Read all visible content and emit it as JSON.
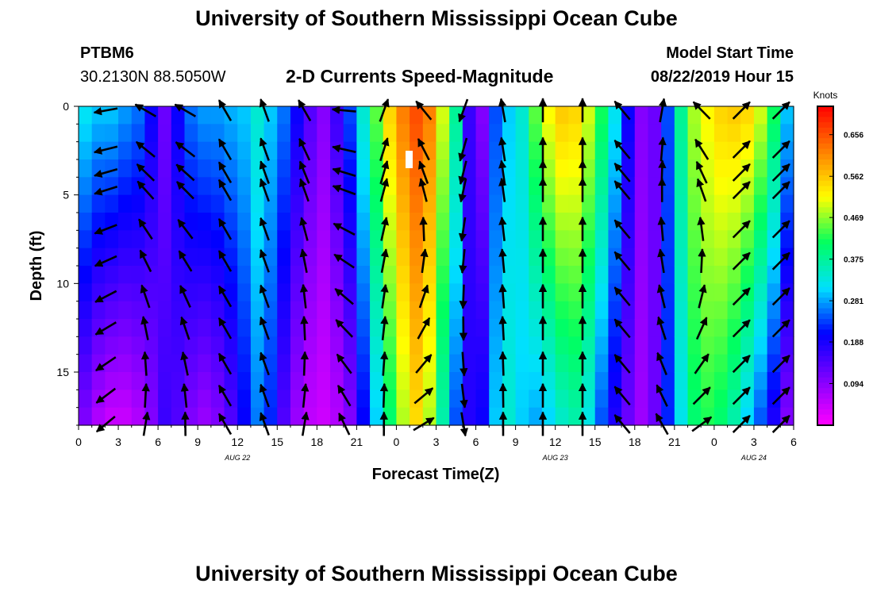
{
  "header": {
    "title": "University of Southern Mississippi Ocean Cube",
    "station_id": "PTBM6",
    "coordinates": "30.2130N 88.5050W",
    "subtitle": "2-D Currents Speed-Magnitude",
    "model_start_label": "Model Start Time",
    "model_start_value": "08/22/2019 Hour 15"
  },
  "footer": {
    "title": "University of Southern Mississippi Ocean Cube"
  },
  "chart_data": {
    "type": "heatmap",
    "title": "2-D Currents Speed-Magnitude",
    "xlabel": "Forecast Time(Z)",
    "ylabel": "Depth (ft)",
    "x_tick_labels": [
      "0",
      "3",
      "6",
      "9",
      "12",
      "15",
      "18",
      "21",
      "0",
      "3",
      "6",
      "9",
      "12",
      "15",
      "18",
      "21",
      "0",
      "3",
      "6"
    ],
    "x_range_hours": [
      0,
      54
    ],
    "date_labels": [
      {
        "text": "AUG  22",
        "hour": 12
      },
      {
        "text": "AUG  23",
        "hour": 36
      },
      {
        "text": "AUG  24",
        "hour": 51
      }
    ],
    "y_ticks": [
      0,
      5,
      10,
      15
    ],
    "y_range_ft": [
      0,
      18
    ],
    "colorbar": {
      "unit": "Knots",
      "tick_labels": [
        "0.656",
        "0.562",
        "0.469",
        "0.375",
        "0.281",
        "0.188",
        "0.094"
      ],
      "tick_values": [
        0.656,
        0.562,
        0.469,
        0.375,
        0.281,
        0.188,
        0.094
      ],
      "range": [
        0,
        0.72
      ],
      "colors": [
        "#ff00ff",
        "#8000ff",
        "#0000ff",
        "#00e0ff",
        "#00ff60",
        "#ffff00",
        "#ff8000",
        "#ff0000"
      ]
    },
    "speed_profile": {
      "hours": [
        0,
        1,
        2,
        3,
        4,
        5,
        6,
        7,
        8,
        9,
        10,
        11,
        12,
        13,
        14,
        15,
        16,
        17,
        18,
        19,
        20,
        21,
        22,
        23,
        24,
        25,
        26,
        27,
        28,
        29,
        30,
        31,
        32,
        33,
        34,
        35,
        36,
        37,
        38,
        39,
        40,
        41,
        42,
        43,
        44,
        45,
        46,
        47,
        48,
        49,
        50,
        51,
        52,
        53,
        54
      ],
      "surface_knots": [
        0.32,
        0.3,
        0.3,
        0.28,
        0.26,
        0.2,
        0.12,
        0.2,
        0.26,
        0.28,
        0.28,
        0.29,
        0.3,
        0.34,
        0.3,
        0.26,
        0.2,
        0.14,
        0.1,
        0.16,
        0.24,
        0.34,
        0.45,
        0.55,
        0.62,
        0.66,
        0.62,
        0.5,
        0.38,
        0.16,
        0.1,
        0.24,
        0.3,
        0.34,
        0.45,
        0.52,
        0.56,
        0.55,
        0.5,
        0.42,
        0.32,
        0.2,
        0.1,
        0.12,
        0.24,
        0.38,
        0.48,
        0.52,
        0.55,
        0.56,
        0.55,
        0.5,
        0.42,
        0.3,
        0.15
      ],
      "bottom_knots": [
        0.1,
        0.06,
        0.04,
        0.04,
        0.06,
        0.1,
        0.16,
        0.14,
        0.1,
        0.08,
        0.1,
        0.14,
        0.2,
        0.26,
        0.22,
        0.14,
        0.08,
        0.05,
        0.04,
        0.06,
        0.1,
        0.2,
        0.3,
        0.4,
        0.48,
        0.54,
        0.48,
        0.36,
        0.24,
        0.18,
        0.2,
        0.3,
        0.34,
        0.3,
        0.28,
        0.3,
        0.34,
        0.36,
        0.32,
        0.24,
        0.18,
        0.12,
        0.08,
        0.12,
        0.22,
        0.32,
        0.4,
        0.42,
        0.4,
        0.36,
        0.3,
        0.24,
        0.18,
        0.1,
        0.06
      ]
    },
    "vector_rows_ft": [
      0.1,
      2.3,
      3.6,
      4.6,
      6.8,
      8.6,
      10.6,
      12.4,
      14.4,
      16.2,
      17.8
    ],
    "vector_columns_hours": [
      2,
      5,
      8,
      11,
      14,
      17,
      20,
      23,
      26,
      29,
      32,
      35,
      38,
      41,
      44,
      47,
      50,
      53
    ]
  }
}
